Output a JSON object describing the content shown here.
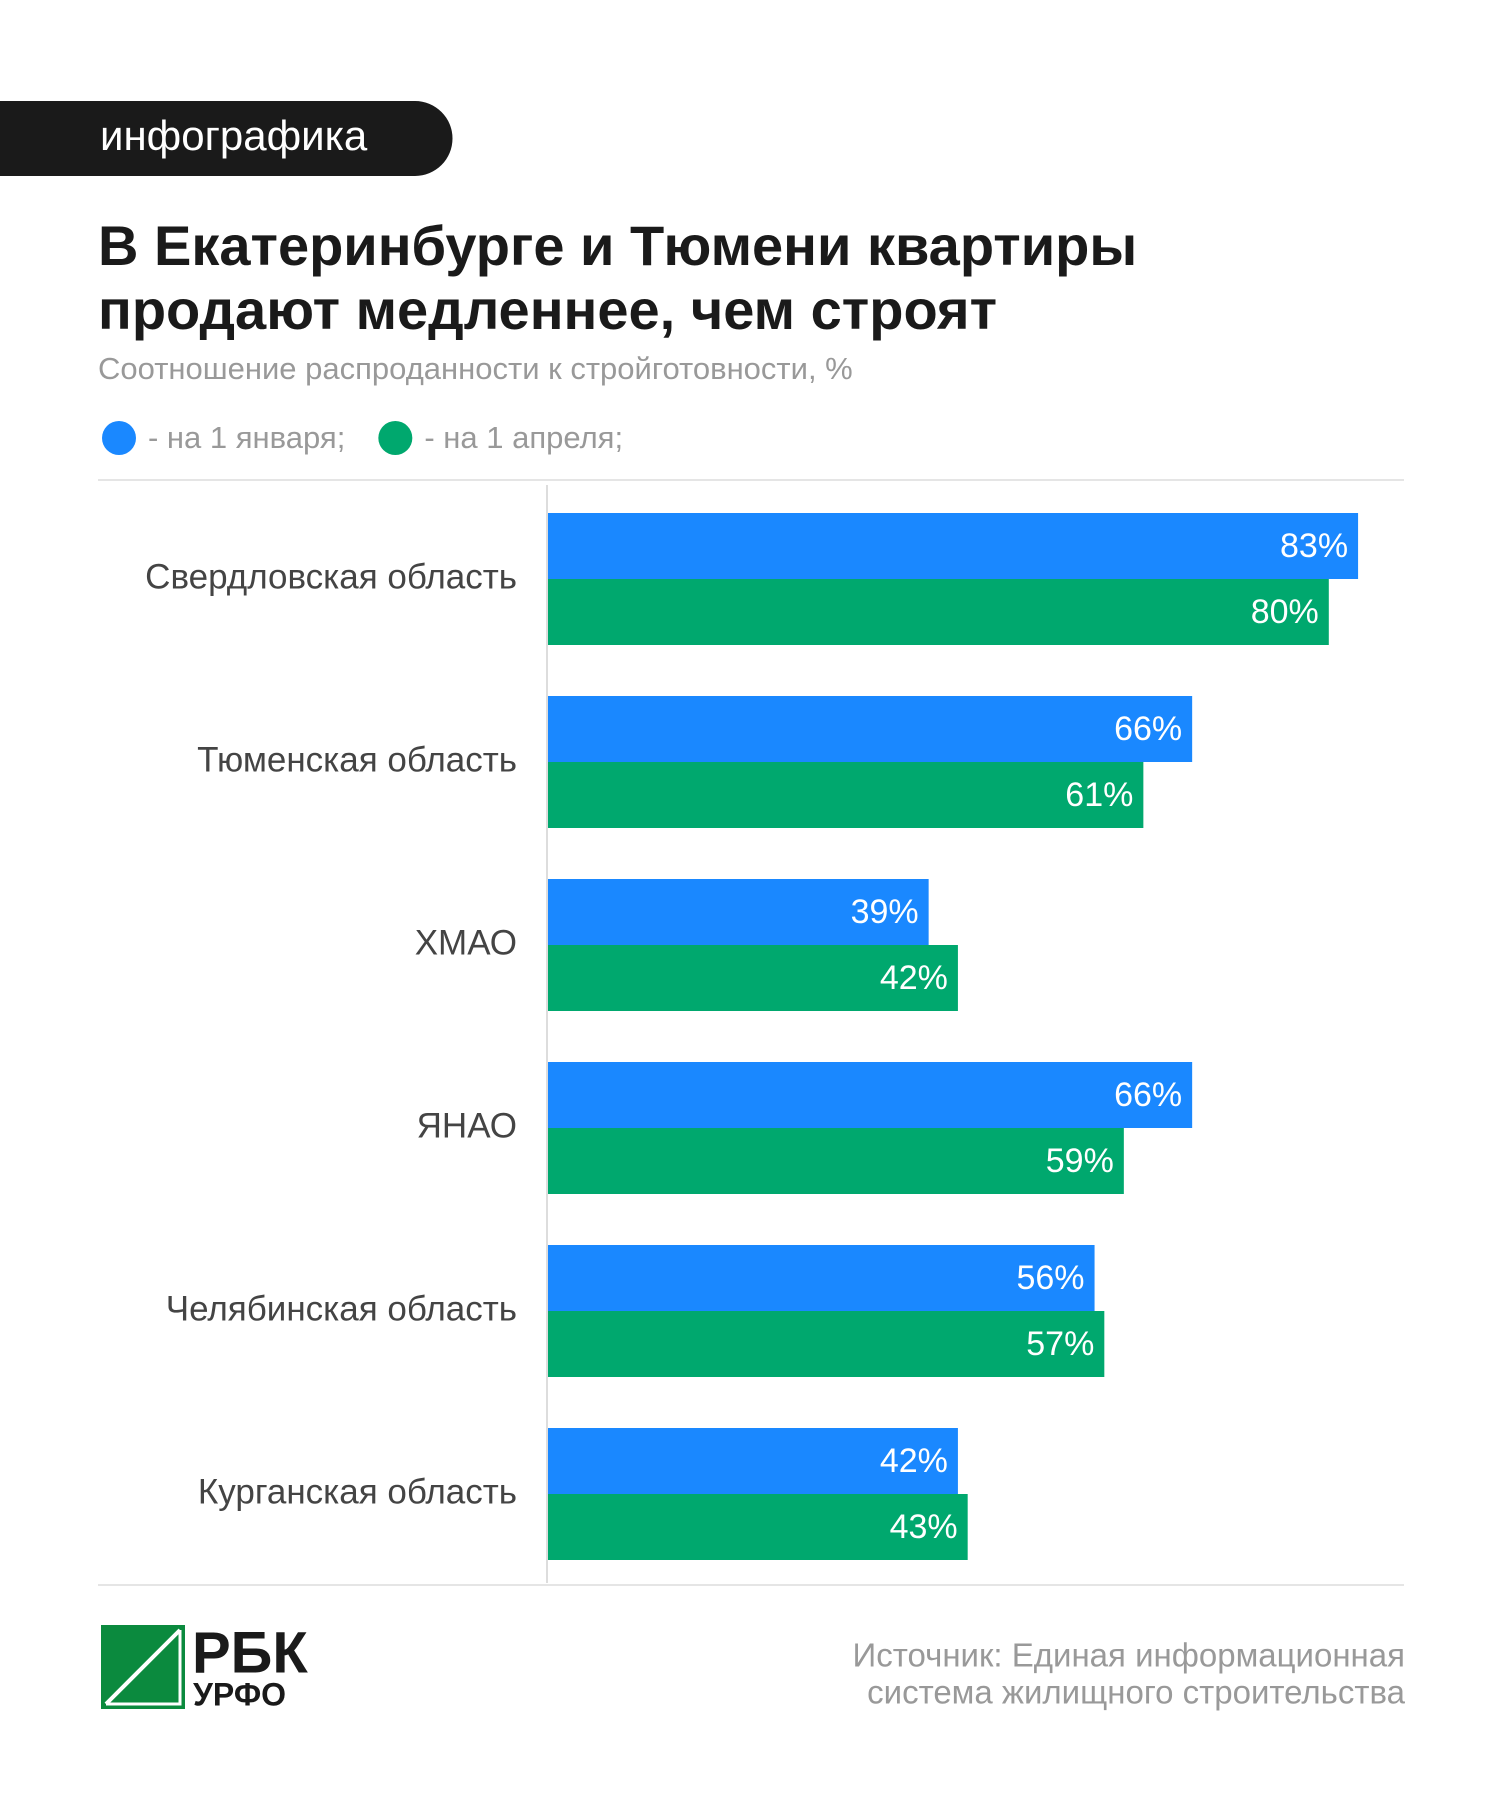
{
  "tag": "инфографика",
  "chart_data": {
    "type": "hbar",
    "title": [
      "В Екатеринбурге и Тюмени квартиры",
      "продают медленнее, чем строят"
    ],
    "subtitle": "Соотношение распроданности к стройготовности, %",
    "categories": [
      "Свердловская область",
      "Тюменская область",
      "ХМАО",
      "ЯНАО",
      "Челябинская область",
      "Курганская область"
    ],
    "series": [
      {
        "name": "- на 1 января;",
        "color": "#1a88ff",
        "values": [
          83,
          66,
          39,
          66,
          56,
          42
        ],
        "value_labels": [
          "83%",
          "66%",
          "39%",
          "66%",
          "56%",
          "42%"
        ]
      },
      {
        "name": "- на 1 апреля;",
        "color": "#00a86e",
        "values": [
          80,
          61,
          42,
          59,
          57,
          43
        ],
        "value_labels": [
          "80%",
          "61%",
          "42%",
          "59%",
          "57%",
          "43%"
        ]
      }
    ]
  },
  "logo": {
    "name": "РБК",
    "region": "УРФО"
  },
  "source": [
    "Источник: Единая информационная",
    "система жилищного строительства"
  ]
}
